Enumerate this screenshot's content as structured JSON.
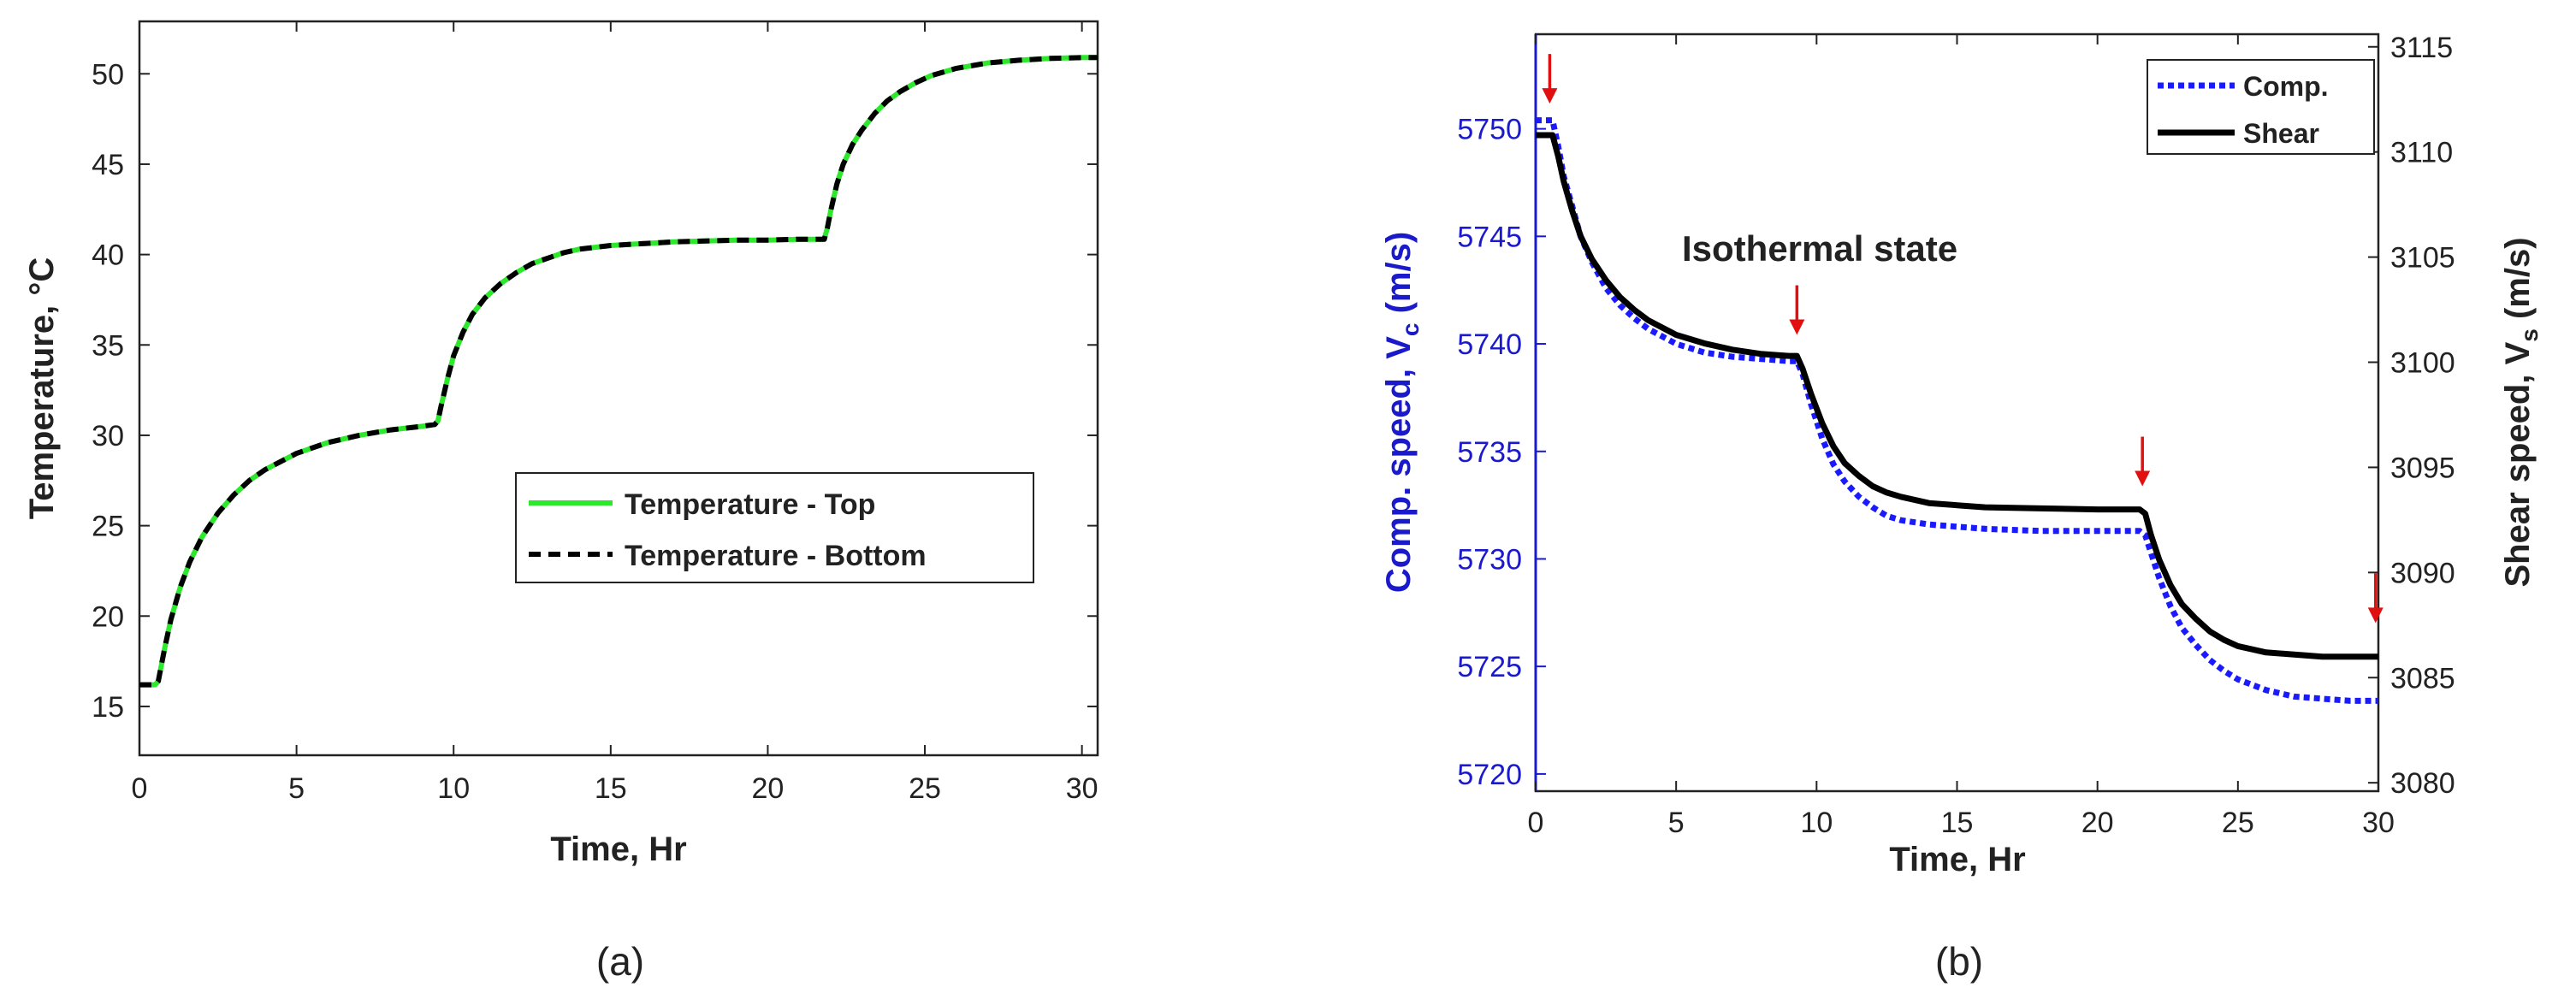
{
  "chart_data": [
    {
      "type": "line",
      "caption": "(a)",
      "xlabel": "Time, Hr",
      "ylabel": "Temperature, °C",
      "xlim": [
        0,
        30.5
      ],
      "ylim": [
        12.3,
        52.9
      ],
      "xticks": [
        0,
        5,
        10,
        15,
        20,
        25,
        30
      ],
      "yticks": [
        15,
        20,
        25,
        30,
        35,
        40,
        45,
        50
      ],
      "legend_position": "center-right",
      "series": [
        {
          "name": "Temperature - Top",
          "color": "#2ee82e",
          "style": "solid",
          "x": [
            0,
            0.5,
            0.6,
            0.8,
            1,
            1.3,
            1.6,
            2,
            2.5,
            3,
            3.5,
            4,
            5,
            6,
            7,
            8,
            9,
            9.4,
            9.5,
            9.6,
            9.8,
            10,
            10.3,
            10.6,
            11,
            11.5,
            12,
            12.5,
            13,
            13.5,
            14,
            15,
            16,
            17,
            18,
            19,
            20,
            21,
            21.8,
            21.9,
            22,
            22.2,
            22.4,
            22.7,
            23,
            23.4,
            23.8,
            24.2,
            24.7,
            25.2,
            26,
            27,
            28,
            29,
            30,
            30.5
          ],
          "y": [
            16.2,
            16.2,
            16.4,
            18.2,
            19.8,
            21.6,
            23.0,
            24.4,
            25.7,
            26.7,
            27.5,
            28.1,
            29.0,
            29.6,
            30.0,
            30.3,
            30.5,
            30.6,
            30.8,
            31.6,
            33.1,
            34.4,
            35.7,
            36.7,
            37.6,
            38.4,
            39.0,
            39.5,
            39.8,
            40.1,
            40.3,
            40.5,
            40.6,
            40.7,
            40.75,
            40.8,
            40.8,
            40.85,
            40.85,
            41.5,
            42.4,
            43.9,
            45.0,
            46.1,
            46.9,
            47.8,
            48.5,
            49.0,
            49.5,
            49.9,
            50.3,
            50.6,
            50.75,
            50.85,
            50.9,
            50.9
          ]
        },
        {
          "name": "Temperature - Bottom",
          "color": "#000000",
          "style": "dashed",
          "x": [
            0,
            0.5,
            0.6,
            0.8,
            1,
            1.3,
            1.6,
            2,
            2.5,
            3,
            3.5,
            4,
            5,
            6,
            7,
            8,
            9,
            9.4,
            9.5,
            9.6,
            9.8,
            10,
            10.3,
            10.6,
            11,
            11.5,
            12,
            12.5,
            13,
            13.5,
            14,
            15,
            16,
            17,
            18,
            19,
            20,
            21,
            21.8,
            21.9,
            22,
            22.2,
            22.4,
            22.7,
            23,
            23.4,
            23.8,
            24.2,
            24.7,
            25.2,
            26,
            27,
            28,
            29,
            30,
            30.5
          ],
          "y": [
            16.2,
            16.2,
            16.4,
            18.2,
            19.8,
            21.6,
            23.0,
            24.4,
            25.7,
            26.7,
            27.5,
            28.1,
            29.0,
            29.6,
            30.0,
            30.3,
            30.5,
            30.6,
            30.8,
            31.6,
            33.1,
            34.4,
            35.7,
            36.7,
            37.6,
            38.4,
            39.0,
            39.5,
            39.8,
            40.1,
            40.3,
            40.5,
            40.6,
            40.7,
            40.75,
            40.8,
            40.8,
            40.85,
            40.85,
            41.5,
            42.4,
            43.9,
            45.0,
            46.1,
            46.9,
            47.8,
            48.5,
            49.0,
            49.5,
            49.9,
            50.3,
            50.6,
            50.75,
            50.85,
            50.9,
            50.9
          ]
        }
      ]
    },
    {
      "type": "line",
      "caption": "(b)",
      "xlabel": "Time, Hr",
      "ylabel_left": "Comp. speed, V",
      "ylabel_left_sub": "c",
      "ylabel_left_unit": " (m/s)",
      "ylabel_right": "Shear speed, V",
      "ylabel_right_sub": "s",
      "ylabel_right_unit": " (m/s)",
      "left_axis_color": "#1a1acc",
      "xlim": [
        0,
        30
      ],
      "ylim_left": [
        5719.2,
        5754.4
      ],
      "ylim_right": [
        3079.6,
        3115.6
      ],
      "xticks": [
        0,
        5,
        10,
        15,
        20,
        25,
        30
      ],
      "yticks_left": [
        5720,
        5725,
        5730,
        5735,
        5740,
        5745,
        5750
      ],
      "yticks_right": [
        3080,
        3085,
        3090,
        3095,
        3100,
        3105,
        3110,
        3115
      ],
      "legend_position": "top-right",
      "annotation": "Isothermal state",
      "arrow_color": "#e01010",
      "arrows": [
        {
          "x": 0.5,
          "y": 3112.3
        },
        {
          "x": 9.3,
          "y": 3101.3
        },
        {
          "x": 21.6,
          "y": 3094.1
        },
        {
          "x": 29.9,
          "y": 3087.6
        }
      ],
      "series": [
        {
          "name": "Comp.",
          "axis": "left",
          "color": "#1a1aff",
          "style": "dotted",
          "x": [
            0,
            0.6,
            0.8,
            1,
            1.3,
            1.6,
            2,
            2.5,
            3,
            3.5,
            4,
            5,
            6,
            7,
            8,
            9,
            9.3,
            9.5,
            9.8,
            10.2,
            10.6,
            11,
            11.5,
            12,
            12.5,
            13,
            14,
            15,
            16,
            18,
            20,
            21.5,
            21.7,
            21.9,
            22.2,
            22.6,
            23,
            23.5,
            24,
            24.5,
            25,
            26,
            27,
            28,
            29,
            30
          ],
          "y": [
            5750.4,
            5750.4,
            5749.2,
            5747.8,
            5746.4,
            5745.0,
            5743.8,
            5742.6,
            5741.8,
            5741.2,
            5740.7,
            5740.0,
            5739.6,
            5739.4,
            5739.3,
            5739.2,
            5739.2,
            5738.6,
            5737.2,
            5735.6,
            5734.4,
            5733.6,
            5732.9,
            5732.4,
            5732.0,
            5731.8,
            5731.6,
            5731.5,
            5731.4,
            5731.3,
            5731.3,
            5731.3,
            5731.1,
            5730.3,
            5729.1,
            5727.8,
            5726.8,
            5726.0,
            5725.3,
            5724.8,
            5724.4,
            5723.9,
            5723.6,
            5723.5,
            5723.4,
            5723.4
          ]
        },
        {
          "name": "Shear",
          "axis": "right",
          "color": "#000000",
          "style": "solid",
          "x": [
            0,
            0.6,
            0.8,
            1,
            1.3,
            1.6,
            2,
            2.5,
            3,
            3.5,
            4,
            5,
            6,
            7,
            8,
            9,
            9.3,
            9.5,
            9.8,
            10.2,
            10.6,
            11,
            11.5,
            12,
            12.5,
            13,
            14,
            15,
            16,
            18,
            20,
            21.5,
            21.7,
            21.9,
            22.2,
            22.6,
            23,
            23.5,
            24,
            24.5,
            25,
            26,
            27,
            28,
            29,
            30
          ],
          "y": [
            3110.8,
            3110.8,
            3109.8,
            3108.6,
            3107.2,
            3106.0,
            3104.9,
            3103.9,
            3103.1,
            3102.5,
            3102.0,
            3101.3,
            3100.9,
            3100.6,
            3100.4,
            3100.3,
            3100.3,
            3099.7,
            3098.5,
            3097.1,
            3096.0,
            3095.2,
            3094.6,
            3094.1,
            3093.8,
            3093.6,
            3093.3,
            3093.2,
            3093.1,
            3093.05,
            3093.0,
            3093.0,
            3092.8,
            3091.8,
            3090.6,
            3089.4,
            3088.5,
            3087.8,
            3087.2,
            3086.8,
            3086.5,
            3086.2,
            3086.1,
            3086.0,
            3086.0,
            3086.0
          ]
        }
      ]
    }
  ]
}
